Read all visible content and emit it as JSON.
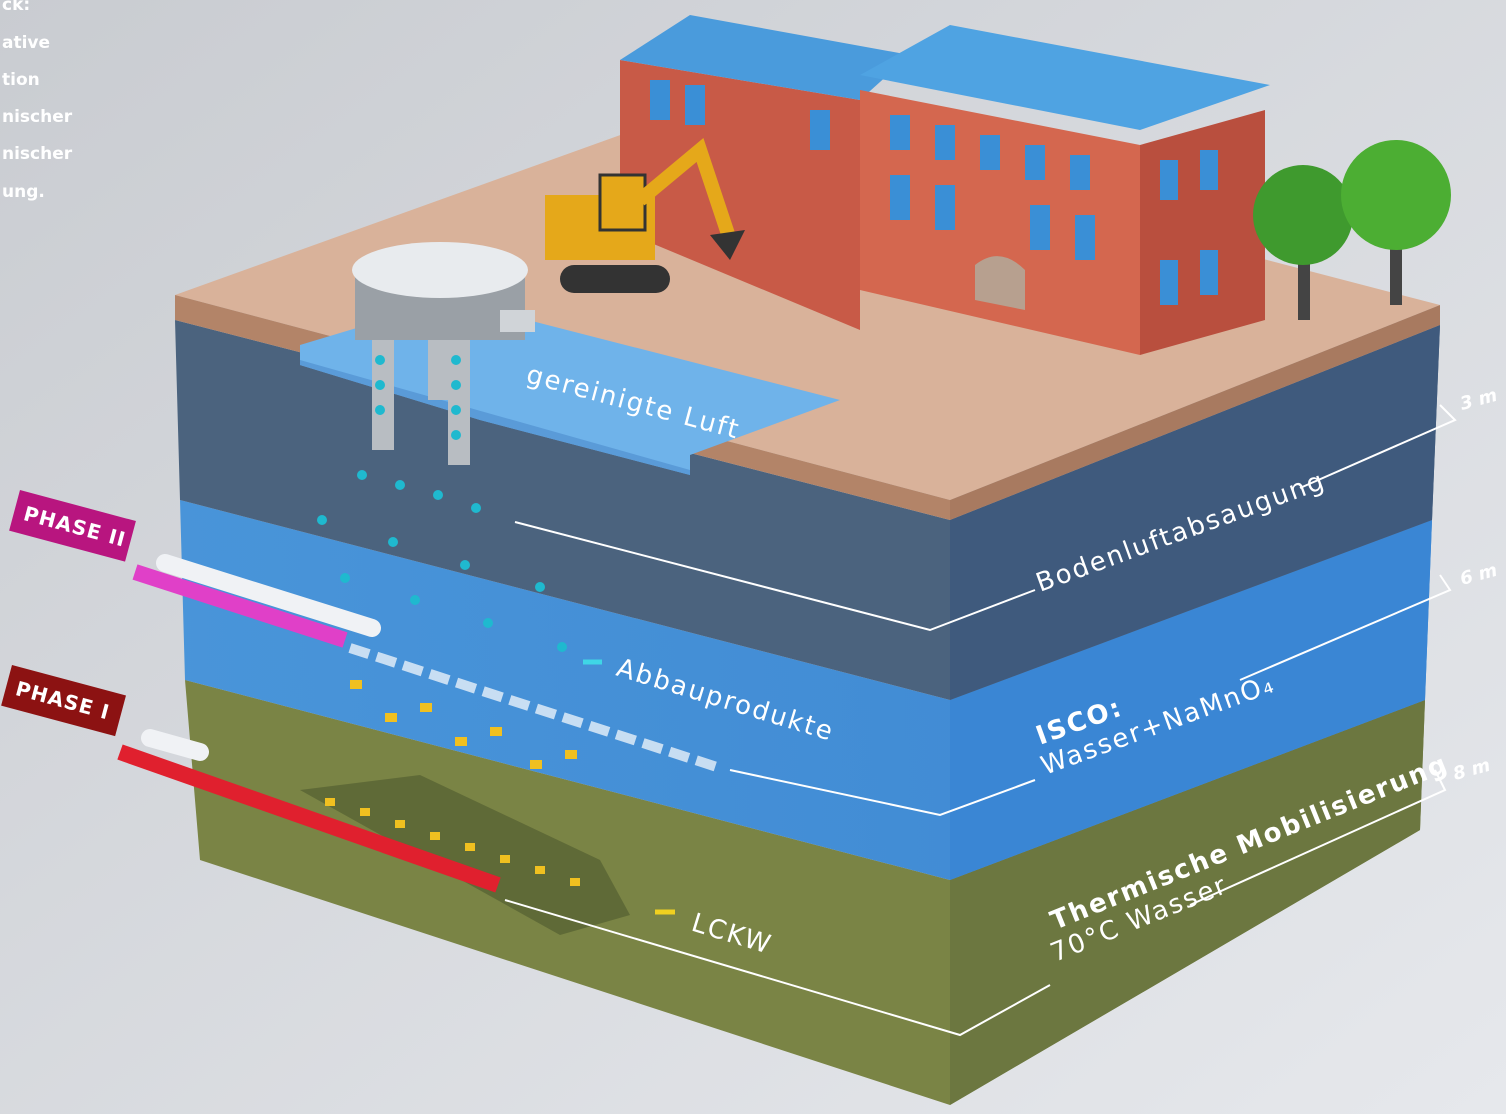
{
  "intro_text": [
    "ck:",
    "ative",
    "tion",
    "nischer",
    "nischer",
    "ung."
  ],
  "labels": {
    "air": "gereinigte Luft",
    "extraction": "Bodenluftabsaugung",
    "products": "Abbauprodukte",
    "isco_title": "ISCO:",
    "isco_text": "Wasser+NaMnO₄",
    "thermal_title": "Thermische Mobilisierung",
    "thermal_text": "70°C Wasser",
    "lckw": "LCKW"
  },
  "phases": [
    "PHASE II",
    "PHASE I"
  ],
  "depths": [
    "3 m",
    "6 m",
    "8 m"
  ]
}
